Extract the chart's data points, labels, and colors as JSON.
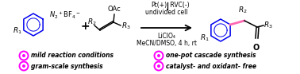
{
  "background_color": "#ffffff",
  "reaction_conditions_line1": "Pt(+)│ RVC(-)",
  "reaction_conditions_line2": "undivided cell",
  "reaction_conditions_line3": "LiClO₄",
  "reaction_conditions_line4": "MeCN/DMSO, 4 h, rt",
  "bullet_points_col1": [
    "mild reaction conditions",
    "gram-scale synthesis"
  ],
  "bullet_points_col2": [
    "one-pot cascade synthesis",
    "catalyst- and oxidant- free"
  ],
  "bullet_color": "#ff00ff",
  "blue": "#0000ee",
  "pink": "#ff69b4",
  "black": "#000000",
  "figsize": [
    3.78,
    0.93
  ],
  "dpi": 100
}
